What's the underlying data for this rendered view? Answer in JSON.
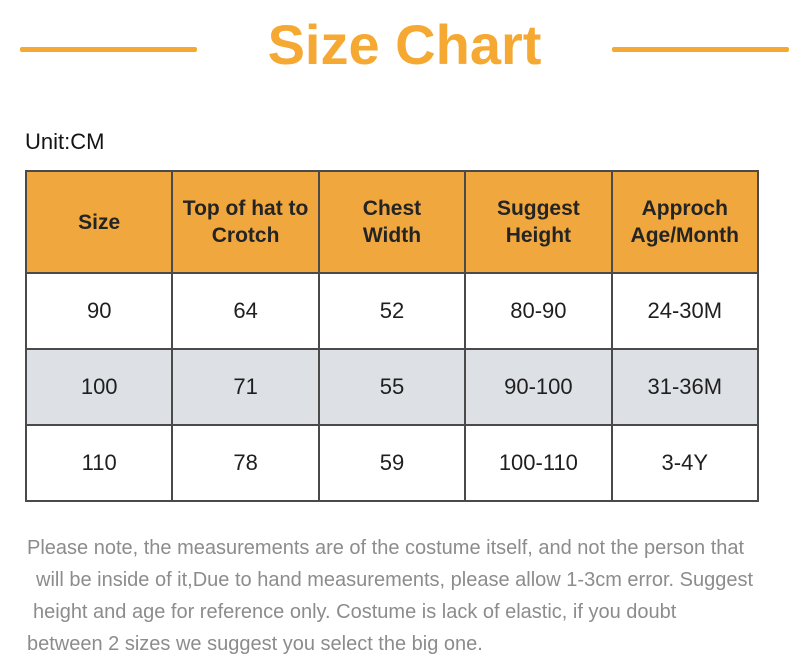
{
  "page": {
    "title": "Size Chart",
    "unit_label": "Unit:CM"
  },
  "colors": {
    "accent_orange": "#F5A832",
    "table_header_bg": "#F0A73E",
    "alt_row_bg": "#DDE0E4",
    "note_text": "#8C8C8C"
  },
  "table": {
    "headers": [
      [
        "Size"
      ],
      [
        "Top of hat to",
        "Crotch"
      ],
      [
        "Chest",
        "Width"
      ],
      [
        "Suggest",
        "Height"
      ],
      [
        "Approch",
        "Age/Month"
      ]
    ],
    "rows": [
      [
        "90",
        "64",
        "52",
        "80-90",
        "24-30M"
      ],
      [
        "100",
        "71",
        "55",
        "90-100",
        "31-36M"
      ],
      [
        "110",
        "78",
        "59",
        "100-110",
        "3-4Y"
      ]
    ]
  },
  "note": {
    "full_text": "Please note, the measurements are of the costume itself, and not the person that will be inside of it,Due to hand measurements, please allow 1-3cm error. Suggest height and age for reference only. Costume is lack of elastic, if you doubt between 2 sizes we suggest you select the big one.",
    "lines": [
      "Please note, the measurements are of the costume itself, and not the person that",
      "will be inside of it,Due to hand measurements, please allow 1-3cm error. Suggest",
      "height and age for reference only. Costume is lack of elastic, if you doubt",
      "between 2 sizes we suggest you select the big one."
    ]
  }
}
